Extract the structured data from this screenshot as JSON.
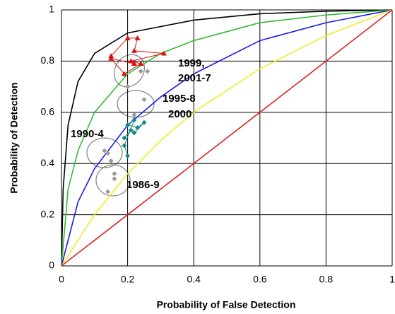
{
  "chart_data": {
    "type": "line",
    "x_label": "Probability of False Detection",
    "y_label": "Probability of Detection",
    "xlim": [
      0,
      1
    ],
    "ylim": [
      0,
      1
    ],
    "xticks": [
      0,
      0.2,
      0.4,
      0.6,
      0.8,
      1
    ],
    "yticks": [
      0,
      0.2,
      0.4,
      0.6,
      0.8,
      1
    ],
    "grid": true,
    "series": [
      {
        "color": "#000000",
        "mode": "line",
        "x": [
          0,
          0.005,
          0.02,
          0.05,
          0.1,
          0.2,
          0.4,
          0.6,
          0.8,
          1
        ],
        "values": [
          0,
          0.3,
          0.55,
          0.72,
          0.83,
          0.91,
          0.96,
          0.985,
          0.995,
          1
        ]
      },
      {
        "color": "#33bb33",
        "mode": "line",
        "x": [
          0,
          0.02,
          0.05,
          0.1,
          0.2,
          0.3,
          0.4,
          0.6,
          0.8,
          1
        ],
        "values": [
          0,
          0.3,
          0.45,
          0.6,
          0.75,
          0.83,
          0.88,
          0.95,
          0.98,
          1
        ]
      },
      {
        "color": "#1a1aee",
        "mode": "line",
        "x": [
          0,
          0.05,
          0.1,
          0.2,
          0.3,
          0.4,
          0.6,
          0.8,
          1
        ],
        "values": [
          0,
          0.25,
          0.38,
          0.55,
          0.66,
          0.75,
          0.88,
          0.95,
          1
        ]
      },
      {
        "color": "#eeee22",
        "mode": "line",
        "x": [
          0,
          0.1,
          0.2,
          0.3,
          0.4,
          0.6,
          0.8,
          1
        ],
        "values": [
          0,
          0.2,
          0.36,
          0.49,
          0.6,
          0.77,
          0.9,
          1
        ]
      },
      {
        "color": "#dd2222",
        "mode": "line",
        "x": [
          0,
          1
        ],
        "values": [
          0,
          1
        ]
      },
      {
        "color": "#dd1111",
        "mode": "markers+line",
        "marker": "triangle",
        "x": [
          0.15,
          0.2,
          0.23,
          0.22,
          0.31,
          0.21,
          0.24,
          0.19,
          0.15,
          0.22
        ],
        "values": [
          0.82,
          0.89,
          0.89,
          0.84,
          0.83,
          0.8,
          0.79,
          0.75,
          0.81,
          0.79
        ]
      },
      {
        "color": "#118888",
        "mode": "markers+line",
        "marker": "diamond",
        "x": [
          0.19,
          0.21,
          0.22,
          0.25,
          0.23,
          0.2,
          0.22,
          0.19,
          0.2
        ],
        "values": [
          0.5,
          0.53,
          0.52,
          0.56,
          0.54,
          0.55,
          0.57,
          0.47,
          0.43
        ]
      },
      {
        "color": "#999999",
        "mode": "markers",
        "marker": "diamond",
        "x": [
          0.2,
          0.24,
          0.26,
          0.22,
          0.25,
          0.13,
          0.15,
          0.14,
          0.16,
          0.16,
          0.14
        ],
        "values": [
          0.7,
          0.76,
          0.76,
          0.59,
          0.65,
          0.45,
          0.41,
          0.44,
          0.36,
          0.34,
          0.29
        ]
      }
    ],
    "annotations": [
      "1999,",
      "2001-7",
      "1995-8",
      "2000",
      "1990-4",
      "1986-9"
    ]
  }
}
